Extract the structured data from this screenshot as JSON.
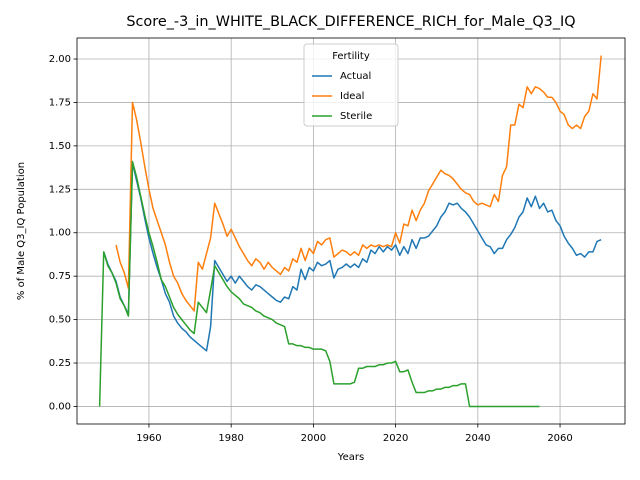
{
  "chart_data": {
    "type": "line",
    "title": "Score_-3_in_WHITE_BLACK_DIFFERENCE_RICH_for_Male_Q3_IQ",
    "xlabel": "Years",
    "ylabel": "% of Male Q3_IQ Population",
    "legend_title": "Fertility",
    "legend": "upper center",
    "grid": true,
    "xlim": [
      1942.5,
      2075.8
    ],
    "ylim": [
      -0.101,
      2.121
    ],
    "xticks": [
      1960,
      1980,
      2000,
      2020,
      2040,
      2060
    ],
    "yticks": [
      {
        "value": 0,
        "label": "0.00"
      },
      {
        "value": 0.25,
        "label": "0.25"
      },
      {
        "value": 0.5,
        "label": "0.50"
      },
      {
        "value": 0.75,
        "label": "0.75"
      },
      {
        "value": 1,
        "label": "1.00"
      },
      {
        "value": 1.25,
        "label": "1.25"
      },
      {
        "value": 1.5,
        "label": "1.50"
      },
      {
        "value": 1.75,
        "label": "1.75"
      },
      {
        "value": 2,
        "label": "2.00"
      }
    ],
    "x": [
      1948,
      1949,
      1950,
      1951,
      1952,
      1953,
      1954,
      1955,
      1956,
      1957,
      1958,
      1959,
      1960,
      1961,
      1962,
      1963,
      1964,
      1965,
      1966,
      1967,
      1968,
      1969,
      1970,
      1971,
      1972,
      1973,
      1974,
      1975,
      1976,
      1977,
      1978,
      1979,
      1980,
      1981,
      1982,
      1983,
      1984,
      1985,
      1986,
      1987,
      1988,
      1989,
      1990,
      1991,
      1992,
      1993,
      1994,
      1995,
      1996,
      1997,
      1998,
      1999,
      2000,
      2001,
      2002,
      2003,
      2004,
      2005,
      2006,
      2007,
      2008,
      2009,
      2010,
      2011,
      2012,
      2013,
      2014,
      2015,
      2016,
      2017,
      2018,
      2019,
      2020,
      2021,
      2022,
      2023,
      2024,
      2025,
      2026,
      2027,
      2028,
      2029,
      2030,
      2031,
      2032,
      2033,
      2034,
      2035,
      2036,
      2037,
      2038,
      2039,
      2040,
      2041,
      2042,
      2043,
      2044,
      2045,
      2046,
      2047,
      2048,
      2049,
      2050,
      2051,
      2052,
      2053,
      2054,
      2055,
      2056,
      2057,
      2058,
      2059,
      2060,
      2061,
      2062,
      2063,
      2064,
      2065,
      2066,
      2067,
      2068,
      2069,
      2070
    ],
    "series": [
      {
        "name": "Actual",
        "color": "#1f77b4",
        "values": [
          null,
          0.89,
          0.82,
          0.77,
          0.72,
          0.63,
          0.58,
          0.53,
          1.4,
          1.3,
          1.2,
          1.08,
          0.97,
          0.88,
          0.8,
          0.73,
          0.65,
          0.6,
          0.52,
          0.48,
          0.45,
          0.43,
          0.4,
          0.38,
          0.36,
          0.34,
          0.32,
          0.46,
          0.84,
          0.8,
          0.76,
          0.72,
          0.75,
          0.71,
          0.75,
          0.72,
          0.69,
          0.67,
          0.7,
          0.69,
          0.67,
          0.65,
          0.63,
          0.61,
          0.6,
          0.63,
          0.62,
          0.69,
          0.67,
          0.79,
          0.73,
          0.8,
          0.78,
          0.83,
          0.81,
          0.82,
          0.84,
          0.74,
          0.79,
          0.8,
          0.82,
          0.8,
          0.82,
          0.8,
          0.85,
          0.83,
          0.9,
          0.88,
          0.92,
          0.89,
          0.92,
          0.9,
          0.93,
          0.87,
          0.92,
          0.88,
          0.96,
          0.91,
          0.97,
          0.97,
          0.98,
          1.01,
          1.04,
          1.09,
          1.12,
          1.17,
          1.16,
          1.17,
          1.14,
          1.12,
          1.09,
          1.05,
          1.01,
          0.97,
          0.93,
          0.92,
          0.88,
          0.91,
          0.91,
          0.96,
          0.99,
          1.03,
          1.09,
          1.12,
          1.2,
          1.15,
          1.21,
          1.14,
          1.17,
          1.12,
          1.13,
          1.07,
          1.04,
          0.98,
          0.94,
          0.91,
          0.87,
          0.88,
          0.86,
          0.89,
          0.89,
          0.95,
          0.96
        ]
      },
      {
        "name": "Ideal",
        "color": "#ff7f0e",
        "values": [
          null,
          null,
          null,
          null,
          0.93,
          0.83,
          0.77,
          0.68,
          1.75,
          1.65,
          1.52,
          1.38,
          1.25,
          1.14,
          1.07,
          1.0,
          0.93,
          0.83,
          0.75,
          0.71,
          0.65,
          0.61,
          0.58,
          0.55,
          0.83,
          0.79,
          0.88,
          0.97,
          1.17,
          1.11,
          1.05,
          0.98,
          1.02,
          0.97,
          0.92,
          0.88,
          0.84,
          0.81,
          0.85,
          0.83,
          0.79,
          0.83,
          0.8,
          0.78,
          0.76,
          0.8,
          0.78,
          0.85,
          0.83,
          0.91,
          0.84,
          0.91,
          0.88,
          0.95,
          0.93,
          0.96,
          0.97,
          0.86,
          0.88,
          0.9,
          0.89,
          0.87,
          0.89,
          0.87,
          0.93,
          0.91,
          0.93,
          0.92,
          0.93,
          0.92,
          0.93,
          0.92,
          1.0,
          0.94,
          1.05,
          1.04,
          1.13,
          1.07,
          1.13,
          1.17,
          1.24,
          1.28,
          1.32,
          1.36,
          1.34,
          1.33,
          1.31,
          1.28,
          1.25,
          1.23,
          1.22,
          1.18,
          1.16,
          1.17,
          1.16,
          1.15,
          1.22,
          1.18,
          1.33,
          1.38,
          1.62,
          1.62,
          1.74,
          1.72,
          1.84,
          1.8,
          1.84,
          1.83,
          1.81,
          1.78,
          1.78,
          1.75,
          1.7,
          1.68,
          1.62,
          1.6,
          1.62,
          1.6,
          1.67,
          1.7,
          1.8,
          1.77,
          2.02
        ]
      },
      {
        "name": "Sterile",
        "color": "#2ca02c",
        "values": [
          0.0,
          0.89,
          0.81,
          0.77,
          0.71,
          0.62,
          0.58,
          0.52,
          1.41,
          1.32,
          1.21,
          1.1,
          1.0,
          0.92,
          0.83,
          0.73,
          0.69,
          0.63,
          0.57,
          0.53,
          0.5,
          0.47,
          0.44,
          0.42,
          0.6,
          0.57,
          0.54,
          0.67,
          0.81,
          0.77,
          0.73,
          0.69,
          0.66,
          0.64,
          0.62,
          0.59,
          0.58,
          0.57,
          0.55,
          0.54,
          0.52,
          0.51,
          0.5,
          0.48,
          0.47,
          0.46,
          0.36,
          0.36,
          0.35,
          0.35,
          0.34,
          0.34,
          0.33,
          0.33,
          0.33,
          0.32,
          0.26,
          0.13,
          0.13,
          0.13,
          0.13,
          0.13,
          0.14,
          0.22,
          0.22,
          0.23,
          0.23,
          0.23,
          0.24,
          0.24,
          0.25,
          0.25,
          0.26,
          0.2,
          0.2,
          0.21,
          0.14,
          0.08,
          0.08,
          0.08,
          0.09,
          0.09,
          0.1,
          0.1,
          0.11,
          0.11,
          0.12,
          0.12,
          0.13,
          0.13,
          0.0,
          0.0,
          0.0,
          0.0,
          0.0,
          0.0,
          0.0,
          0.0,
          0.0,
          0.0,
          0.0,
          0.0,
          0.0,
          0.0,
          0.0,
          0.0,
          0.0,
          0.0,
          null,
          null,
          null,
          null,
          null,
          null,
          null,
          null,
          null,
          null,
          null,
          null,
          null,
          null,
          null
        ]
      }
    ]
  }
}
